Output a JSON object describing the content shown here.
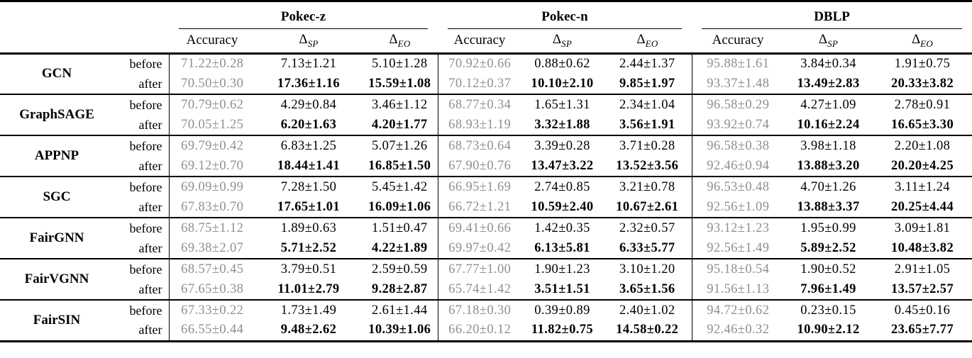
{
  "table": {
    "datasets": [
      {
        "name": "Pokec-z"
      },
      {
        "name": "Pokec-n"
      },
      {
        "name": "DBLP"
      }
    ],
    "metric_headers": [
      {
        "label": "Accuracy",
        "sub": ""
      },
      {
        "label": "Δ",
        "sub": "SP"
      },
      {
        "label": "Δ",
        "sub": "EO"
      }
    ],
    "phase_labels": {
      "before": "before",
      "after": "after"
    },
    "colors": {
      "accuracy_text": "#8f8f8f",
      "delta_text": "#000000",
      "rule_color": "#000000"
    },
    "models": [
      {
        "name": "GCN",
        "before": [
          "71.22±0.28",
          "7.13±1.21",
          "5.10±1.28",
          "70.92±0.66",
          "0.88±0.62",
          "2.44±1.37",
          "95.88±1.61",
          "3.84±0.34",
          "1.91±0.75"
        ],
        "after": [
          "70.50±0.30",
          "17.36±1.16",
          "15.59±1.08",
          "70.12±0.37",
          "10.10±2.10",
          "9.85±1.97",
          "93.37±1.48",
          "13.49±2.83",
          "20.33±3.82"
        ]
      },
      {
        "name": "GraphSAGE",
        "before": [
          "70.79±0.62",
          "4.29±0.84",
          "3.46±1.12",
          "68.77±0.34",
          "1.65±1.31",
          "2.34±1.04",
          "96.58±0.29",
          "4.27±1.09",
          "2.78±0.91"
        ],
        "after": [
          "70.05±1.25",
          "6.20±1.63",
          "4.20±1.77",
          "68.93±1.19",
          "3.32±1.88",
          "3.56±1.91",
          "93.92±0.74",
          "10.16±2.24",
          "16.65±3.30"
        ]
      },
      {
        "name": "APPNP",
        "before": [
          "69.79±0.42",
          "6.83±1.25",
          "5.07±1.26",
          "68.73±0.64",
          "3.39±0.28",
          "3.71±0.28",
          "96.58±0.38",
          "3.98±1.18",
          "2.20±1.08"
        ],
        "after": [
          "69.12±0.70",
          "18.44±1.41",
          "16.85±1.50",
          "67.90±0.76",
          "13.47±3.22",
          "13.52±3.56",
          "92.46±0.94",
          "13.88±3.20",
          "20.20±4.25"
        ]
      },
      {
        "name": "SGC",
        "before": [
          "69.09±0.99",
          "7.28±1.50",
          "5.45±1.42",
          "66.95±1.69",
          "2.74±0.85",
          "3.21±0.78",
          "96.53±0.48",
          "4.70±1.26",
          "3.11±1.24"
        ],
        "after": [
          "67.83±0.70",
          "17.65±1.01",
          "16.09±1.06",
          "66.72±1.21",
          "10.59±2.40",
          "10.67±2.61",
          "92.56±1.09",
          "13.88±3.37",
          "20.25±4.44"
        ]
      },
      {
        "name": "FairGNN",
        "before": [
          "68.75±1.12",
          "1.89±0.63",
          "1.51±0.47",
          "69.41±0.66",
          "1.42±0.35",
          "2.32±0.57",
          "93.12±1.23",
          "1.95±0.99",
          "3.09±1.81"
        ],
        "after": [
          "69.38±2.07",
          "5.71±2.52",
          "4.22±1.89",
          "69.97±0.42",
          "6.13±5.81",
          "6.33±5.77",
          "92.56±1.49",
          "5.89±2.52",
          "10.48±3.82"
        ]
      },
      {
        "name": "FairVGNN",
        "before": [
          "68.57±0.45",
          "3.79±0.51",
          "2.59±0.59",
          "67.77±1.00",
          "1.90±1.23",
          "3.10±1.20",
          "95.18±0.54",
          "1.90±0.52",
          "2.91±1.05"
        ],
        "after": [
          "67.65±0.38",
          "11.01±2.79",
          "9.28±2.87",
          "65.74±1.42",
          "3.51±1.51",
          "3.65±1.56",
          "91.56±1.13",
          "7.96±1.49",
          "13.57±2.57"
        ]
      },
      {
        "name": "FairSIN",
        "before": [
          "67.33±0.22",
          "1.73±1.49",
          "2.61±1.44",
          "67.18±0.30",
          "0.39±0.89",
          "2.40±1.02",
          "94.72±0.62",
          "0.23±0.15",
          "0.45±0.16"
        ],
        "after": [
          "66.55±0.44",
          "9.48±2.62",
          "10.39±1.06",
          "66.20±0.12",
          "11.82±0.75",
          "14.58±0.22",
          "92.46±0.32",
          "10.90±2.12",
          "23.65±7.77"
        ]
      }
    ]
  }
}
